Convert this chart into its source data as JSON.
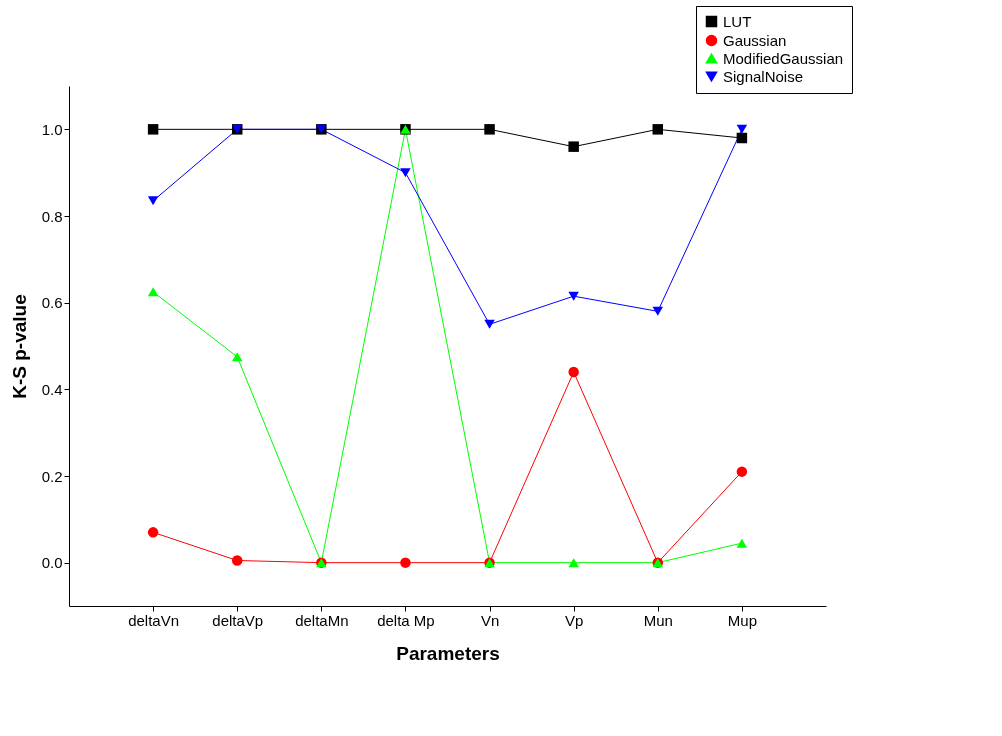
{
  "chart_data": {
    "type": "line",
    "xlabel": "Parameters",
    "ylabel": "K-S p-value",
    "categories": [
      "deltaVn",
      "deltaVp",
      "deltaMn",
      "delta Mp",
      "Vn",
      "Vp",
      "Mun",
      "Mup"
    ],
    "series": [
      {
        "name": "LUT",
        "color": "#000000",
        "marker": "square",
        "values": [
          1.0,
          1.0,
          1.0,
          1.0,
          1.0,
          0.96,
          1.0,
          0.98
        ]
      },
      {
        "name": "Gaussian",
        "color": "#ff0000",
        "marker": "circle",
        "values": [
          0.07,
          0.005,
          0.0,
          0.0,
          0.0,
          0.44,
          0.0,
          0.21
        ]
      },
      {
        "name": "ModifiedGaussian",
        "color": "#00ff00",
        "marker": "triangle",
        "values": [
          0.625,
          0.475,
          0.0,
          1.0,
          0.0,
          0.0,
          0.0,
          0.045
        ]
      },
      {
        "name": "SignalNoise",
        "color": "#0000ff",
        "marker": "triangle-down",
        "values": [
          0.835,
          1.0,
          1.0,
          0.9,
          0.55,
          0.615,
          0.58,
          1.0
        ]
      }
    ],
    "ylim": [
      -0.1,
      1.1
    ],
    "yticks": [
      {
        "value": 0,
        "label": "0.0"
      },
      {
        "value": 0.2,
        "label": "0.2"
      },
      {
        "value": 0.4,
        "label": "0.4"
      },
      {
        "value": 0.6,
        "label": "0.6"
      },
      {
        "value": 0.8,
        "label": "0.8"
      },
      {
        "value": 1,
        "label": "1.0"
      }
    ],
    "grid": false,
    "legend": "top right",
    "line_style": "solid"
  }
}
